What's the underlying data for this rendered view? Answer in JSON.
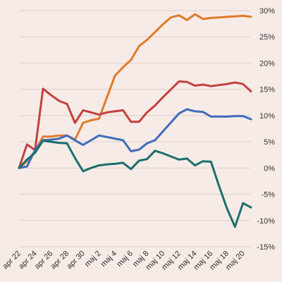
{
  "chart_data": {
    "type": "line",
    "x": [
      "apr 22",
      "apr 23",
      "apr 24",
      "apr 25",
      "apr 26",
      "apr 27",
      "apr 28",
      "apr 29",
      "apr 30",
      "maj 1",
      "maj 2",
      "maj 3",
      "maj 4",
      "maj 5",
      "maj 6",
      "maj 7",
      "maj 8",
      "maj 9",
      "maj 10",
      "maj 11",
      "maj 12",
      "maj 13",
      "maj 14",
      "maj 15",
      "maj 16",
      "maj 17",
      "maj 18",
      "maj 19",
      "maj 20",
      "maj 21"
    ],
    "x_ticks": [
      "apr 22",
      "apr 24",
      "apr 26",
      "apr 28",
      "apr 30",
      "maj 2",
      "maj 4",
      "maj 6",
      "maj 8",
      "maj 10",
      "maj 12",
      "maj 14",
      "maj 16",
      "maj 18",
      "maj 20"
    ],
    "y_ticks": [
      "-15%",
      "-10%",
      "-5%",
      "0%",
      "5%",
      "10%",
      "15%",
      "20%",
      "25%",
      "30%"
    ],
    "ylim": [
      -15,
      30
    ],
    "grid": true,
    "series": [
      {
        "color": "#e07b2b",
        "values": [
          0,
          1.3,
          3.2,
          6.0,
          6.0,
          6.2,
          6.2,
          5.4,
          8.6,
          9.1,
          9.4,
          13.5,
          17.6,
          19.2,
          20.6,
          23.2,
          24.4,
          25.9,
          27.4,
          28.7,
          29.1,
          28.2,
          29.3,
          28.4,
          28.6,
          28.7,
          28.8,
          28.9,
          29.0,
          28.8
        ]
      },
      {
        "color": "#c4403e",
        "values": [
          0,
          4.5,
          3.4,
          15.1,
          13.9,
          12.8,
          12.2,
          8.6,
          11.0,
          10.6,
          10.2,
          10.6,
          10.8,
          11.0,
          8.8,
          8.8,
          10.6,
          11.9,
          13.5,
          15.0,
          16.5,
          16.4,
          15.7,
          15.9,
          15.6,
          15.8,
          16.0,
          16.3,
          16.0,
          14.6
        ]
      },
      {
        "color": "#3f6dbb",
        "values": [
          0,
          0.3,
          3.4,
          5.3,
          5.4,
          5.6,
          6.2,
          5.3,
          4.4,
          5.3,
          6.2,
          5.9,
          5.6,
          5.3,
          3.2,
          3.5,
          4.7,
          5.3,
          7.0,
          8.7,
          10.4,
          11.2,
          10.8,
          10.7,
          9.8,
          9.8,
          9.8,
          9.9,
          9.9,
          9.3
        ]
      },
      {
        "color": "#1b6f6e",
        "values": [
          0,
          1.6,
          2.9,
          5.2,
          5.0,
          4.8,
          4.7,
          1.9,
          -0.6,
          0.0,
          0.5,
          0.7,
          0.8,
          1.0,
          -0.2,
          1.4,
          1.7,
          3.3,
          2.8,
          2.2,
          1.6,
          1.8,
          0.5,
          1.3,
          1.2,
          -3.4,
          -7.7,
          -11.2,
          -6.7,
          -7.5
        ]
      }
    ]
  }
}
